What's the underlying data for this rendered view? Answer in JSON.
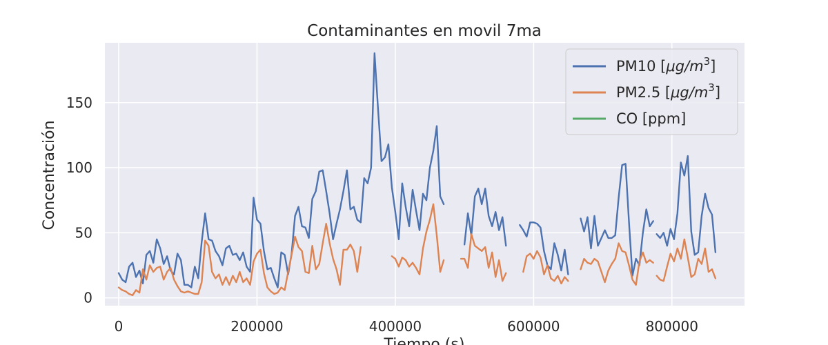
{
  "chart_data": {
    "type": "line",
    "title": "Contaminantes en movil 7ma",
    "xlabel": "Tiempo (s)",
    "ylabel": "Concentración",
    "xlim": [
      -20000,
      905000
    ],
    "ylim": [
      -6,
      196
    ],
    "xticks": [
      0,
      200000,
      400000,
      600000,
      800000
    ],
    "xtick_labels": [
      "0",
      "200000",
      "400000",
      "600000",
      "800000"
    ],
    "yticks": [
      0,
      50,
      100,
      150
    ],
    "ytick_labels": [
      "0",
      "50",
      "100",
      "150"
    ],
    "grid": true,
    "background": "#eaeaf2",
    "legend_placement": "top-right",
    "series": [
      {
        "name": "PM10 [μg/m³]",
        "label_main": "PM10 [",
        "label_unit": "μg/m",
        "label_exp": "3",
        "label_end": "]",
        "color": "#4c72b0",
        "segments": [
          {
            "x": [
              0,
              5000,
              10000,
              15000,
              20000,
              25000,
              30000,
              35000,
              40000,
              45000,
              50000,
              55000,
              60000,
              65000,
              70000,
              75000,
              80000,
              85000,
              90000,
              95000,
              100000,
              105000,
              110000,
              115000,
              120000,
              125000,
              130000,
              135000,
              140000,
              145000,
              150000,
              155000,
              160000,
              165000,
              170000,
              175000,
              180000,
              185000,
              190000,
              195000,
              200000,
              205000,
              210000,
              215000,
              220000,
              225000,
              230000,
              235000,
              240000,
              245000,
              250000,
              255000,
              260000,
              265000,
              270000,
              275000,
              280000,
              285000,
              290000,
              295000,
              300000,
              305000,
              310000,
              315000,
              320000,
              325000,
              330000,
              335000,
              340000,
              345000,
              350000,
              355000,
              360000,
              365000,
              370000,
              375000,
              380000,
              385000,
              390000,
              395000,
              400000,
              405000,
              410000,
              415000,
              420000,
              425000,
              430000,
              435000,
              440000,
              445000,
              450000,
              455000,
              460000,
              465000,
              470000
            ],
            "y": [
              19,
              14,
              12,
              24,
              27,
              16,
              21,
              11,
              33,
              36,
              27,
              45,
              38,
              26,
              32,
              21,
              18,
              34,
              29,
              10,
              10,
              8,
              24,
              15,
              43,
              65,
              45,
              44,
              36,
              32,
              25,
              38,
              40,
              33,
              34,
              29,
              35,
              24,
              20,
              77,
              60,
              57,
              36,
              22,
              23,
              15,
              8,
              35,
              33,
              18,
              34,
              63,
              70,
              55,
              54,
              46,
              76,
              82,
              97,
              98,
              82,
              65,
              45,
              57,
              68,
              82,
              98,
              68,
              70,
              60,
              58,
              92,
              88,
              100,
              188,
              145,
              105,
              108,
              118,
              85,
              66,
              45,
              88,
              70,
              55,
              83,
              67,
              52,
              80,
              75,
              100,
              113,
              132,
              78,
              72
            ]
          },
          {
            "x": [
              500000,
              505000,
              510000,
              515000,
              520000,
              525000,
              530000,
              535000,
              540000,
              545000,
              550000,
              555000,
              560000
            ],
            "y": [
              41,
              65,
              48,
              78,
              84,
              72,
              84,
              63,
              55,
              66,
              52,
              62,
              40
            ]
          },
          {
            "x": [
              580000,
              585000,
              590000,
              595000,
              600000,
              605000,
              610000,
              615000,
              620000,
              625000,
              630000,
              635000,
              640000,
              645000,
              650000
            ],
            "y": [
              56,
              52,
              47,
              58,
              58,
              57,
              54,
              36,
              25,
              22,
              42,
              33,
              21,
              37,
              18
            ]
          },
          {
            "x": [
              668000,
              673000,
              678000,
              683000,
              688000,
              693000,
              698000,
              703000,
              708000,
              713000,
              718000,
              723000,
              728000,
              733000,
              738000,
              743000,
              748000,
              753000,
              758000,
              763000,
              768000,
              773000
            ],
            "y": [
              61,
              51,
              62,
              38,
              63,
              40,
              46,
              52,
              46,
              46,
              48,
              77,
              102,
              103,
              58,
              17,
              30,
              25,
              50,
              68,
              55,
              59
            ]
          },
          {
            "x": [
              778000,
              783000,
              788000,
              793000,
              798000,
              803000,
              808000,
              813000,
              818000,
              823000,
              828000,
              833000,
              838000,
              843000,
              848000,
              853000,
              858000,
              863000
            ],
            "y": [
              49,
              46,
              50,
              40,
              53,
              45,
              65,
              104,
              94,
              109,
              51,
              33,
              35,
              63,
              80,
              69,
              64,
              35
            ]
          }
        ]
      },
      {
        "name": "PM2.5 [μg/m³]",
        "label_main": "PM2.5 [",
        "label_unit": "μg/m",
        "label_exp": "3",
        "label_end": "]",
        "color": "#dd8452",
        "segments": [
          {
            "x": [
              0,
              5000,
              10000,
              15000,
              20000,
              25000,
              30000,
              35000,
              40000,
              45000,
              50000,
              55000,
              60000,
              65000,
              70000,
              75000,
              80000,
              85000,
              90000,
              95000,
              100000,
              105000,
              110000,
              115000,
              120000,
              125000,
              130000,
              135000,
              140000,
              145000,
              150000,
              155000,
              160000,
              165000,
              170000,
              175000,
              180000,
              185000,
              190000,
              195000,
              200000,
              205000,
              210000,
              215000,
              220000,
              225000,
              230000,
              235000,
              240000,
              245000,
              250000,
              255000,
              260000,
              265000,
              270000,
              275000,
              280000,
              285000,
              290000,
              295000,
              300000,
              305000,
              310000,
              315000,
              320000,
              325000,
              330000,
              335000,
              340000,
              345000,
              350000
            ],
            "y": [
              8,
              6,
              5,
              3,
              2,
              6,
              4,
              22,
              14,
              25,
              20,
              23,
              24,
              14,
              20,
              23,
              14,
              9,
              5,
              4,
              5,
              4,
              3,
              3,
              12,
              44,
              40,
              20,
              15,
              18,
              10,
              16,
              10,
              17,
              12,
              20,
              12,
              15,
              10,
              28,
              34,
              37,
              19,
              8,
              5,
              3,
              4,
              8,
              6,
              20,
              33,
              47,
              39,
              36,
              20,
              19,
              40,
              22,
              26,
              42,
              57,
              42,
              30,
              22,
              10,
              37,
              37,
              41,
              36,
              20,
              39
            ]
          },
          {
            "x": [
              395000,
              400000,
              405000,
              410000,
              415000,
              420000,
              425000,
              430000,
              435000,
              440000,
              445000,
              450000,
              455000,
              460000,
              465000,
              470000
            ],
            "y": [
              32,
              30,
              24,
              31,
              29,
              24,
              27,
              23,
              18,
              38,
              51,
              60,
              72,
              48,
              20,
              29
            ]
          },
          {
            "x": [
              495000,
              500000,
              505000,
              510000,
              515000,
              520000,
              525000,
              530000,
              535000,
              540000,
              545000,
              550000,
              555000,
              560000
            ],
            "y": [
              30,
              30,
              23,
              49,
              40,
              38,
              36,
              39,
              23,
              35,
              16,
              29,
              13,
              19
            ]
          },
          {
            "x": [
              585000,
              590000,
              595000,
              600000,
              605000,
              610000,
              615000,
              620000,
              625000,
              630000,
              635000,
              640000,
              645000,
              650000
            ],
            "y": [
              20,
              32,
              34,
              30,
              36,
              31,
              18,
              25,
              15,
              13,
              17,
              11,
              16,
              13
            ]
          },
          {
            "x": [
              668000,
              673000,
              678000,
              683000,
              688000,
              693000,
              698000,
              703000,
              708000,
              713000,
              718000,
              723000,
              728000,
              733000,
              738000,
              743000,
              748000,
              753000,
              758000,
              763000,
              768000,
              773000
            ],
            "y": [
              22,
              30,
              27,
              26,
              30,
              28,
              20,
              12,
              21,
              26,
              30,
              42,
              36,
              35,
              25,
              14,
              10,
              28,
              35,
              27,
              29,
              27
            ]
          },
          {
            "x": [
              778000,
              783000,
              788000,
              793000,
              798000,
              803000,
              808000,
              813000,
              818000,
              823000,
              828000,
              833000,
              838000,
              843000,
              848000,
              853000,
              858000,
              863000
            ],
            "y": [
              17,
              14,
              13,
              24,
              34,
              28,
              38,
              30,
              45,
              31,
              16,
              18,
              30,
              26,
              38,
              20,
              22,
              15
            ]
          }
        ]
      },
      {
        "name": "CO [ppm]",
        "label_main": "CO [ppm]",
        "label_unit": "",
        "label_exp": "",
        "label_end": "",
        "color": "#55a868",
        "segments": []
      }
    ]
  }
}
